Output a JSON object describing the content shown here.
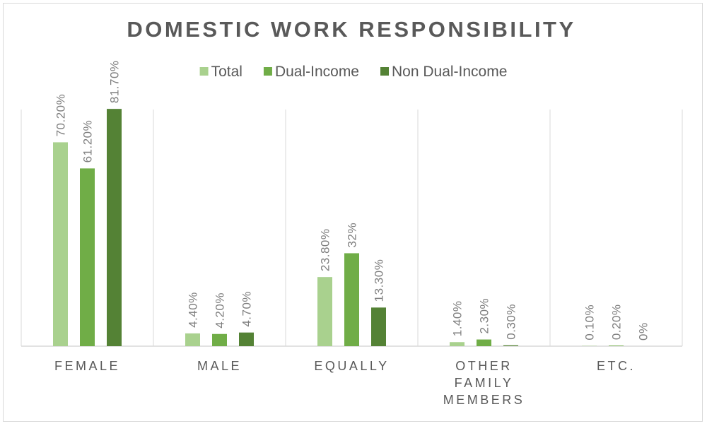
{
  "chart_data": {
    "type": "bar",
    "title": "DOMESTIC WORK RESPONSIBILITY",
    "categories": [
      "FEMALE",
      "MALE",
      "EQUALLY",
      "OTHER FAMILY MEMBERS",
      "ETC."
    ],
    "category_lines": [
      [
        "FEMALE"
      ],
      [
        "MALE"
      ],
      [
        "EQUALLY"
      ],
      [
        "OTHER",
        "FAMILY",
        "MEMBERS"
      ],
      [
        "ETC."
      ]
    ],
    "series": [
      {
        "name": "Total",
        "color": "#a9d18e",
        "values": [
          70.2,
          4.4,
          23.8,
          1.4,
          0.1
        ],
        "labels": [
          "70.20%",
          "4.40%",
          "23.80%",
          "1.40%",
          "0.10%"
        ]
      },
      {
        "name": "Dual-Income",
        "color": "#70ad47",
        "values": [
          61.2,
          4.2,
          32,
          2.3,
          0.2
        ],
        "labels": [
          "61.20%",
          "4.20%",
          "32%",
          "2.30%",
          "0.20%"
        ]
      },
      {
        "name": "Non Dual-Income",
        "color": "#548235",
        "values": [
          81.7,
          4.7,
          13.3,
          0.3,
          0
        ],
        "labels": [
          "81.70%",
          "4.70%",
          "13.30%",
          "0.30%",
          "0%"
        ]
      }
    ],
    "ylim": [
      0,
      90
    ],
    "legend_position": "top",
    "grid": "vertical category separators"
  }
}
